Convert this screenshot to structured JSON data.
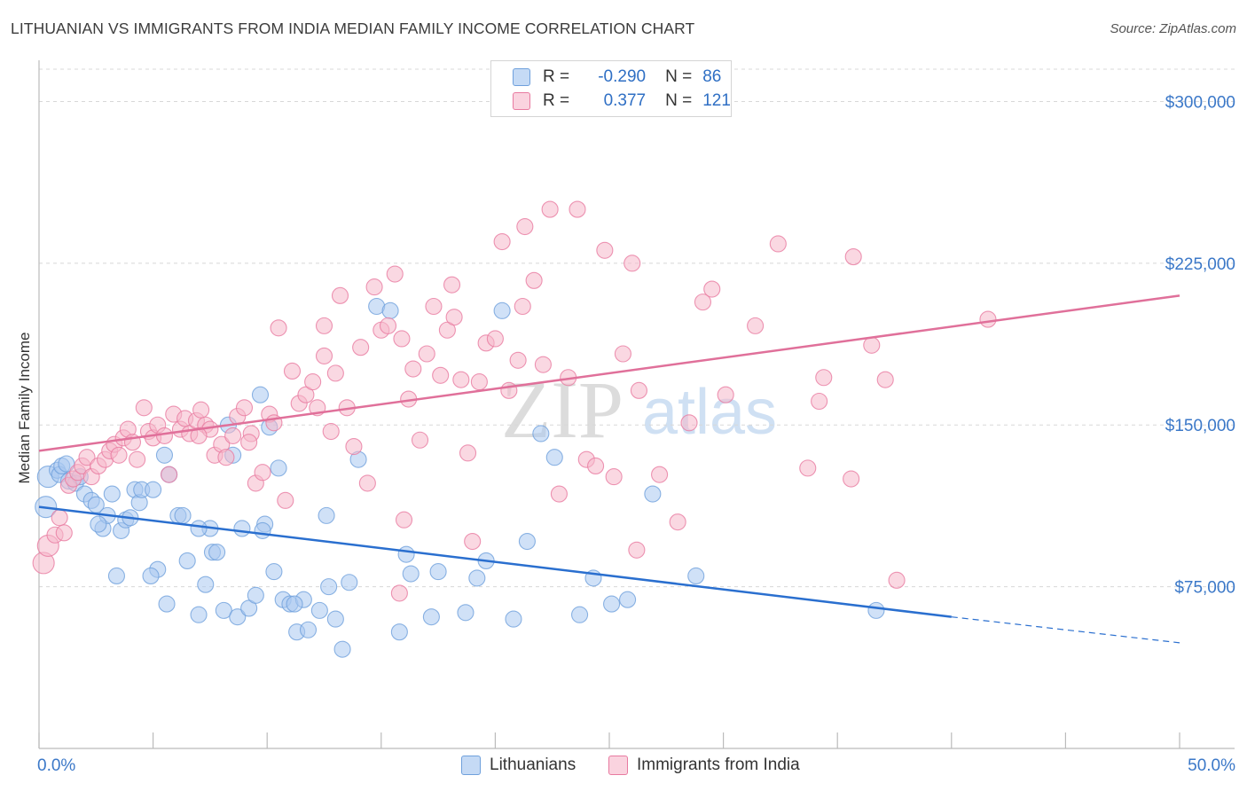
{
  "header": {
    "title": "LITHUANIAN VS IMMIGRANTS FROM INDIA MEDIAN FAMILY INCOME CORRELATION CHART",
    "source": "Source: ZipAtlas.com"
  },
  "watermark": {
    "part1": "ZIP",
    "part2": "atlas"
  },
  "legend_top": {
    "rows": [
      {
        "r_label": "R =",
        "r_value": "-0.290",
        "n_label": "N =",
        "n_value": "86",
        "color": "#a9c8f0"
      },
      {
        "r_label": "R =",
        "r_value": "0.377",
        "n_label": "N =",
        "n_value": "121",
        "color": "#f5b8cb"
      }
    ]
  },
  "legend_bottom": {
    "items": [
      {
        "label": "Lithuanians",
        "color": "#a9c8f0"
      },
      {
        "label": "Immigrants from India",
        "color": "#f5b8cb"
      }
    ]
  },
  "chart_data": {
    "type": "scatter",
    "title": "LITHUANIAN VS IMMIGRANTS FROM INDIA MEDIAN FAMILY INCOME CORRELATION CHART",
    "xlabel": "",
    "ylabel": "Median Family Income",
    "xlim": [
      0,
      50
    ],
    "ylim": [
      0,
      315000
    ],
    "x_tick_labels": [
      "0.0%",
      "50.0%"
    ],
    "y_ticks": [
      75000,
      150000,
      225000,
      300000
    ],
    "y_tick_labels": [
      "$75,000",
      "$150,000",
      "$225,000",
      "$300,000"
    ],
    "grid": true,
    "legend_position": "top-center",
    "series": [
      {
        "name": "Lithuanians",
        "color": "#6fa0dc",
        "fill": "#a9c8f0",
        "trend": {
          "x": [
            0,
            40
          ],
          "y": [
            112000,
            61000
          ],
          "dashed_to": [
            50,
            49000
          ]
        },
        "points": [
          [
            0.3,
            112000
          ],
          [
            0.4,
            126000
          ],
          [
            0.8,
            129000
          ],
          [
            0.9,
            127000
          ],
          [
            1.0,
            131000
          ],
          [
            1.2,
            132000
          ],
          [
            1.3,
            124000
          ],
          [
            1.6,
            123000
          ],
          [
            1.8,
            126000
          ],
          [
            2.0,
            118000
          ],
          [
            2.3,
            115000
          ],
          [
            2.5,
            113000
          ],
          [
            2.8,
            102000
          ],
          [
            3.0,
            108000
          ],
          [
            3.2,
            118000
          ],
          [
            3.6,
            101000
          ],
          [
            3.8,
            106000
          ],
          [
            4.0,
            107000
          ],
          [
            4.2,
            120000
          ],
          [
            4.4,
            114000
          ],
          [
            4.5,
            120000
          ],
          [
            5.0,
            120000
          ],
          [
            5.2,
            83000
          ],
          [
            5.5,
            136000
          ],
          [
            5.7,
            127000
          ],
          [
            6.1,
            108000
          ],
          [
            6.3,
            108000
          ],
          [
            6.5,
            87000
          ],
          [
            7.0,
            62000
          ],
          [
            7.3,
            76000
          ],
          [
            7.5,
            102000
          ],
          [
            7.6,
            91000
          ],
          [
            7.8,
            91000
          ],
          [
            8.1,
            64000
          ],
          [
            8.3,
            150000
          ],
          [
            8.5,
            136000
          ],
          [
            8.7,
            61000
          ],
          [
            8.9,
            102000
          ],
          [
            9.2,
            65000
          ],
          [
            9.5,
            71000
          ],
          [
            9.7,
            164000
          ],
          [
            9.9,
            104000
          ],
          [
            10.1,
            149000
          ],
          [
            10.3,
            82000
          ],
          [
            10.5,
            130000
          ],
          [
            10.7,
            69000
          ],
          [
            11.0,
            67000
          ],
          [
            11.3,
            54000
          ],
          [
            11.6,
            69000
          ],
          [
            11.8,
            55000
          ],
          [
            12.3,
            64000
          ],
          [
            12.7,
            75000
          ],
          [
            13.0,
            60000
          ],
          [
            13.3,
            46000
          ],
          [
            13.6,
            77000
          ],
          [
            14.0,
            134000
          ],
          [
            14.8,
            205000
          ],
          [
            15.4,
            203000
          ],
          [
            15.8,
            54000
          ],
          [
            16.1,
            90000
          ],
          [
            16.3,
            81000
          ],
          [
            17.2,
            61000
          ],
          [
            17.5,
            82000
          ],
          [
            18.7,
            63000
          ],
          [
            19.2,
            79000
          ],
          [
            19.6,
            87000
          ],
          [
            20.3,
            203000
          ],
          [
            20.8,
            60000
          ],
          [
            21.4,
            96000
          ],
          [
            22.0,
            146000
          ],
          [
            22.6,
            135000
          ],
          [
            23.7,
            62000
          ],
          [
            24.3,
            79000
          ],
          [
            25.1,
            67000
          ],
          [
            25.8,
            69000
          ],
          [
            26.9,
            118000
          ],
          [
            28.8,
            80000
          ],
          [
            3.4,
            80000
          ],
          [
            5.6,
            67000
          ],
          [
            36.7,
            64000
          ],
          [
            7.0,
            102000
          ],
          [
            2.6,
            104000
          ],
          [
            4.9,
            80000
          ],
          [
            9.8,
            101000
          ],
          [
            11.2,
            67000
          ],
          [
            12.6,
            108000
          ]
        ]
      },
      {
        "name": "Immigrants from India",
        "color": "#e87aa0",
        "fill": "#f5b8cb",
        "trend": {
          "x": [
            0,
            50
          ],
          "y": [
            138000,
            210000
          ]
        },
        "points": [
          [
            0.2,
            86000
          ],
          [
            0.4,
            94000
          ],
          [
            0.7,
            99000
          ],
          [
            0.9,
            107000
          ],
          [
            1.1,
            100000
          ],
          [
            1.3,
            122000
          ],
          [
            1.5,
            125000
          ],
          [
            1.7,
            128000
          ],
          [
            1.9,
            131000
          ],
          [
            2.1,
            135000
          ],
          [
            2.3,
            126000
          ],
          [
            2.6,
            131000
          ],
          [
            2.9,
            134000
          ],
          [
            3.1,
            138000
          ],
          [
            3.3,
            141000
          ],
          [
            3.5,
            136000
          ],
          [
            3.7,
            144000
          ],
          [
            3.9,
            148000
          ],
          [
            4.1,
            142000
          ],
          [
            4.3,
            134000
          ],
          [
            4.6,
            158000
          ],
          [
            4.8,
            147000
          ],
          [
            5.0,
            144000
          ],
          [
            5.2,
            150000
          ],
          [
            5.5,
            145000
          ],
          [
            5.7,
            127000
          ],
          [
            5.9,
            155000
          ],
          [
            6.2,
            148000
          ],
          [
            6.4,
            153000
          ],
          [
            6.6,
            146000
          ],
          [
            6.9,
            152000
          ],
          [
            7.1,
            157000
          ],
          [
            7.3,
            150000
          ],
          [
            7.5,
            148000
          ],
          [
            7.7,
            136000
          ],
          [
            8.0,
            141000
          ],
          [
            8.2,
            135000
          ],
          [
            8.5,
            145000
          ],
          [
            8.7,
            154000
          ],
          [
            9.0,
            158000
          ],
          [
            9.3,
            146000
          ],
          [
            9.5,
            123000
          ],
          [
            9.8,
            128000
          ],
          [
            10.1,
            155000
          ],
          [
            10.3,
            151000
          ],
          [
            10.5,
            195000
          ],
          [
            10.8,
            115000
          ],
          [
            11.1,
            175000
          ],
          [
            11.4,
            160000
          ],
          [
            11.7,
            164000
          ],
          [
            12.0,
            170000
          ],
          [
            12.2,
            158000
          ],
          [
            12.5,
            182000
          ],
          [
            12.8,
            147000
          ],
          [
            13.0,
            174000
          ],
          [
            13.2,
            210000
          ],
          [
            13.5,
            158000
          ],
          [
            13.8,
            140000
          ],
          [
            14.1,
            186000
          ],
          [
            14.4,
            123000
          ],
          [
            14.7,
            214000
          ],
          [
            15.0,
            194000
          ],
          [
            15.3,
            196000
          ],
          [
            15.6,
            220000
          ],
          [
            15.9,
            190000
          ],
          [
            16.2,
            162000
          ],
          [
            16.4,
            176000
          ],
          [
            16.7,
            143000
          ],
          [
            17.0,
            183000
          ],
          [
            17.3,
            205000
          ],
          [
            17.6,
            173000
          ],
          [
            17.9,
            194000
          ],
          [
            18.2,
            200000
          ],
          [
            18.5,
            171000
          ],
          [
            18.8,
            137000
          ],
          [
            19.0,
            96000
          ],
          [
            19.3,
            170000
          ],
          [
            19.6,
            188000
          ],
          [
            20.0,
            190000
          ],
          [
            20.3,
            235000
          ],
          [
            20.6,
            166000
          ],
          [
            21.0,
            180000
          ],
          [
            21.3,
            242000
          ],
          [
            21.7,
            217000
          ],
          [
            22.1,
            178000
          ],
          [
            22.4,
            250000
          ],
          [
            22.8,
            118000
          ],
          [
            23.2,
            172000
          ],
          [
            23.6,
            250000
          ],
          [
            24.0,
            134000
          ],
          [
            24.4,
            131000
          ],
          [
            24.8,
            231000
          ],
          [
            25.2,
            126000
          ],
          [
            25.6,
            183000
          ],
          [
            26.0,
            225000
          ],
          [
            26.3,
            166000
          ],
          [
            27.2,
            127000
          ],
          [
            28.0,
            105000
          ],
          [
            28.5,
            151000
          ],
          [
            29.1,
            207000
          ],
          [
            29.5,
            213000
          ],
          [
            30.1,
            164000
          ],
          [
            31.4,
            196000
          ],
          [
            32.4,
            234000
          ],
          [
            33.7,
            130000
          ],
          [
            34.2,
            161000
          ],
          [
            34.4,
            172000
          ],
          [
            35.6,
            125000
          ],
          [
            35.7,
            228000
          ],
          [
            36.5,
            187000
          ],
          [
            37.1,
            171000
          ],
          [
            37.6,
            78000
          ],
          [
            41.6,
            199000
          ],
          [
            15.8,
            72000
          ],
          [
            16.0,
            106000
          ],
          [
            7.0,
            145000
          ],
          [
            9.2,
            142000
          ],
          [
            12.5,
            196000
          ],
          [
            18.1,
            215000
          ],
          [
            21.2,
            205000
          ],
          [
            26.2,
            92000
          ]
        ]
      }
    ]
  }
}
